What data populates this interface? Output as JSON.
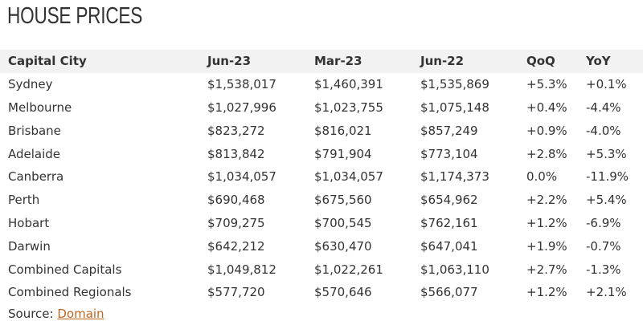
{
  "header": {
    "title": "HOUSE PRICES"
  },
  "table": {
    "columns": [
      "Capital City",
      "Jun-23",
      "Mar-23",
      "Jun-22",
      "QoQ",
      "YoY"
    ],
    "rows": [
      [
        "Sydney",
        "$1,538,017",
        "$1,460,391",
        "$1,535,869",
        "+5.3%",
        "+0.1%"
      ],
      [
        "Melbourne",
        "$1,027,996",
        "$1,023,755",
        "$1,075,148",
        "+0.4%",
        "-4.4%"
      ],
      [
        "Brisbane",
        "$823,272",
        "$816,021",
        "$857,249",
        "+0.9%",
        "-4.0%"
      ],
      [
        "Adelaide",
        "$813,842",
        "$791,904",
        "$773,104",
        "+2.8%",
        "+5.3%"
      ],
      [
        "Canberra",
        "$1,034,057",
        "$1,034,057",
        "$1,174,373",
        "0.0%",
        "-11.9%"
      ],
      [
        "Perth",
        "$690,468",
        "$675,560",
        "$654,962",
        "+2.2%",
        "+5.4%"
      ],
      [
        "Hobart",
        "$709,275",
        "$700,545",
        "$762,161",
        "+1.2%",
        "-6.9%"
      ],
      [
        "Darwin",
        "$642,212",
        "$630,470",
        "$647,041",
        "+1.9%",
        "-0.7%"
      ],
      [
        "Combined Capitals",
        "$1,049,812",
        "$1,022,261",
        "$1,063,110",
        "+2.7%",
        "-1.3%"
      ],
      [
        "Combined Regionals",
        "$577,720",
        "$570,646",
        "$566,077",
        "+1.2%",
        "+2.1%"
      ]
    ]
  },
  "source": {
    "label": "Source:",
    "link": "Domain"
  }
}
